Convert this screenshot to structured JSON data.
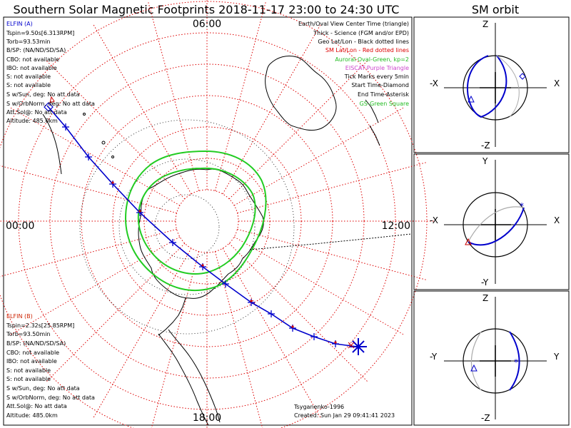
{
  "page": {
    "title": "Southern Solar Magnetic Footprints 2018-11-17 23:00 to 24:30 UTC",
    "sm_title": "SM orbit"
  },
  "colors": {
    "trajectory": "#0000cc",
    "tick_marks": "#0000cc",
    "auroral_oval": "#22cc22",
    "geo_lines": "#000000",
    "sm_lines": "#cc0000",
    "elfin_a_label": "#0000cc",
    "elfin_b_label": "#cc2200",
    "eiscat": "#cc44cc",
    "orbit_gray": "#aaaaaa"
  },
  "polar_plot": {
    "time_labels": {
      "top": "06:00",
      "left": "00:00",
      "right": "12:00",
      "bottom": "18:00"
    },
    "legend": [
      {
        "text": "Earth/Oval View Center Time (triangle)",
        "color": "#000000"
      },
      {
        "text": "Thick - Science (FGM and/or EPD)",
        "color": "#000000"
      },
      {
        "text": "Geo Lat/Lon - Black dotted lines",
        "color": "#000000"
      },
      {
        "text": "SM Lat/Lon - Red dotted lines",
        "color": "#dd0000"
      },
      {
        "text": "Auroral Oval-Green, kp=2",
        "color": "#22bb22"
      },
      {
        "text": "EISCAT-Purple Triangle",
        "color": "#cc44cc"
      },
      {
        "text": "Tick Marks every 5min",
        "color": "#000000"
      },
      {
        "text": "Start Time-Diamond",
        "color": "#000000"
      },
      {
        "text": "End Time-Asterisk",
        "color": "#000000"
      },
      {
        "text": "GS-Green Square",
        "color": "#22bb22"
      }
    ],
    "elfin_a": {
      "name": "ELFIN (A)",
      "lines": [
        "Tspin=9.50s[6.313RPM]",
        "Torb=93.53min",
        "B/SP: (NA/ND/SD/SA)",
        "CBO: not available",
        "IBO: not available",
        "S: not available",
        "S: not available",
        "S w/Sun, deg: No att data",
        "S w/OrbNorm, deg: No att data",
        "Att.Sol@: No att data",
        "Altitude: 485.0km"
      ]
    },
    "elfin_b": {
      "name": "ELFIN (B)",
      "lines": [
        "Tspin=2.32s[25.85RPM]",
        "Torb=93.50min",
        "B/SP: (NA/ND/SD/SA)",
        "CBO: not available",
        "IBO: not available",
        "S: not available",
        "S: not available",
        "S w/Sun, deg: No att data",
        "S w/OrbNorm, deg: No att data",
        "Att.Sol@: No att data",
        "Altitude: 485.0km"
      ]
    },
    "credit": "Tsyganenko-1996",
    "created": "Created: Sun Jan 29 09:41:41 2023"
  },
  "sm_panels": [
    {
      "top": "Z",
      "bottom": "-Z",
      "left": "-X",
      "right": "X"
    },
    {
      "top": "Y",
      "bottom": "-Y",
      "left": "-X",
      "right": "X"
    },
    {
      "top": "Z",
      "bottom": "-Z",
      "left": "-Y",
      "right": "Y"
    }
  ],
  "chart_data": {
    "type": "scatter",
    "projection": "polar, southern hemisphere, magnetic local time around the rim",
    "mlt_labels": [
      "06:00",
      "00:00",
      "12:00",
      "18:00"
    ],
    "grid": true,
    "legend_position": "top-right",
    "series": []
  }
}
